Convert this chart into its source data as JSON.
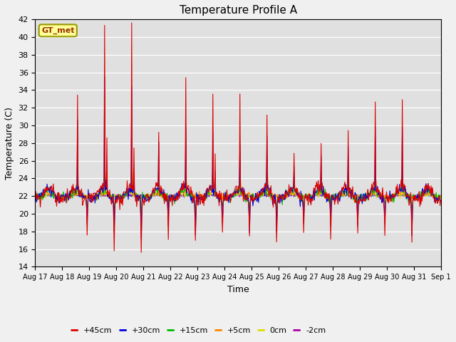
{
  "title": "Temperature Profile A",
  "xlabel": "Time",
  "ylabel": "Temperature (C)",
  "ylim": [
    14,
    42
  ],
  "yticks": [
    14,
    16,
    18,
    20,
    22,
    24,
    26,
    28,
    30,
    32,
    34,
    36,
    38,
    40,
    42
  ],
  "fig_bg": "#f0f0f0",
  "ax_bg": "#e0e0e0",
  "grid_color": "#ffffff",
  "series_colors": {
    "+45cm": "#dd0000",
    "+30cm": "#0000dd",
    "+15cm": "#00bb00",
    "+5cm": "#ff8800",
    "0cm": "#dddd00",
    "-2cm": "#aa00aa",
    "-8cm": "#00cccc",
    "-16cm": "#ff44ff"
  },
  "legend_label": "GT_met",
  "legend_bg": "#ffff99",
  "legend_border": "#999900",
  "n_days": 15,
  "pts_per_day": 48,
  "base_temp": 22.0,
  "peak_heights_45": [
    10,
    18,
    19,
    6,
    13,
    11,
    10,
    8,
    4,
    5,
    7,
    9,
    10
  ],
  "peak_heights_30": [
    8,
    13,
    12,
    5,
    7,
    7,
    5,
    6,
    3,
    4,
    5,
    7,
    7
  ],
  "peak_heights_15": [
    2,
    4,
    5,
    2,
    3,
    3,
    3,
    4,
    2,
    2,
    3,
    3,
    3
  ],
  "dip_depths_45": [
    4,
    6,
    6,
    4,
    5,
    4,
    5,
    5,
    4,
    4,
    4,
    4,
    5
  ],
  "dip_depths_30": [
    3,
    4,
    5,
    3,
    4,
    3,
    4,
    4,
    3,
    3,
    3,
    3,
    4
  ],
  "dip_depths_15": [
    1,
    2,
    2,
    1,
    2,
    1,
    2,
    2,
    1,
    1,
    1,
    1,
    2
  ]
}
